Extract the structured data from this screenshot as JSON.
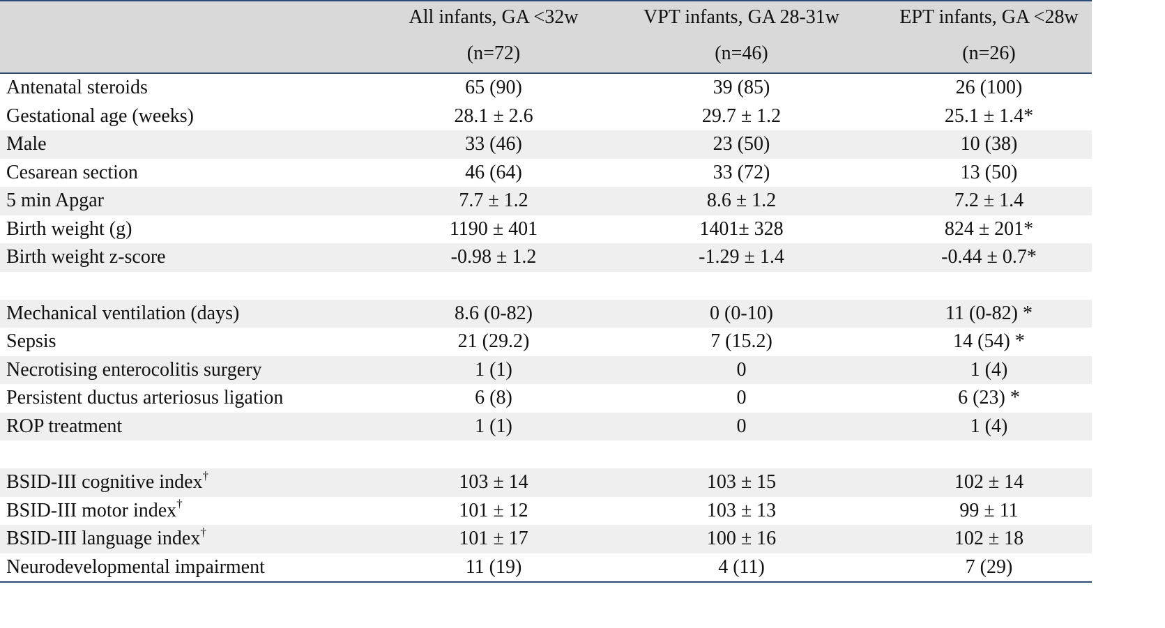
{
  "columns": [
    {
      "line1": "All infants, GA <32w",
      "line2": "(n=72)"
    },
    {
      "line1": "VPT infants, GA 28-31w",
      "line2": "(n=46)"
    },
    {
      "line1": "EPT infants, GA <28w",
      "line2": "(n=26)"
    }
  ],
  "rows": [
    {
      "label": "Antenatal steroids",
      "mark": "",
      "values": [
        "65 (90)",
        "39 (85)",
        "26 (100)"
      ]
    },
    {
      "label": "Gestational age (weeks)",
      "mark": "",
      "values": [
        "28.1 ± 2.6",
        "29.7 ± 1.2",
        "25.1 ± 1.4*"
      ]
    },
    {
      "label": "Male",
      "mark": "",
      "values": [
        "33 (46)",
        "23 (50)",
        "10 (38)"
      ]
    },
    {
      "label": "Cesarean section",
      "mark": "",
      "values": [
        "46 (64)",
        "33 (72)",
        "13 (50)"
      ]
    },
    {
      "label": "5 min Apgar",
      "mark": "",
      "values": [
        "7.7 ± 1.2",
        "8.6 ± 1.2",
        "7.2 ± 1.4"
      ]
    },
    {
      "label": "Birth weight (g)",
      "mark": "",
      "values": [
        "1190 ± 401",
        "1401± 328",
        "824 ± 201*"
      ]
    },
    {
      "label": "Birth weight z-score",
      "mark": "",
      "values": [
        "-0.98 ± 1.2",
        "-1.29 ± 1.4",
        "-0.44 ± 0.7*"
      ]
    },
    {
      "label": "Mechanical ventilation (days)",
      "mark": "",
      "values": [
        "8.6 (0-82)",
        "0 (0-10)",
        "11 (0-82) *"
      ]
    },
    {
      "label": "Sepsis",
      "mark": "",
      "values": [
        "21 (29.2)",
        "7 (15.2)",
        "14 (54) *"
      ]
    },
    {
      "label": "Necrotising enterocolitis surgery",
      "mark": "",
      "values": [
        "1 (1)",
        "0",
        "1 (4)"
      ]
    },
    {
      "label": "Persistent ductus arteriosus ligation",
      "mark": "",
      "values": [
        "6 (8)",
        "0",
        "6 (23) *"
      ]
    },
    {
      "label": "ROP treatment",
      "mark": "",
      "values": [
        "1 (1)",
        "0",
        "1 (4)"
      ]
    },
    {
      "label": "BSID-III cognitive index",
      "mark": "†",
      "values": [
        "103 ± 14",
        "103 ± 15",
        "102 ± 14"
      ]
    },
    {
      "label": "BSID-III  motor index",
      "mark": "†",
      "values": [
        "101 ± 12",
        "103 ± 13",
        "99 ± 11"
      ]
    },
    {
      "label": "BSID-III  language index",
      "mark": "†",
      "values": [
        "101 ± 17",
        "100 ± 16",
        "102 ± 18"
      ]
    },
    {
      "label": "Neurodevelopmental impairment",
      "mark": "",
      "values": [
        "11 (19)",
        "4 (11)",
        "7 (29)"
      ]
    }
  ]
}
